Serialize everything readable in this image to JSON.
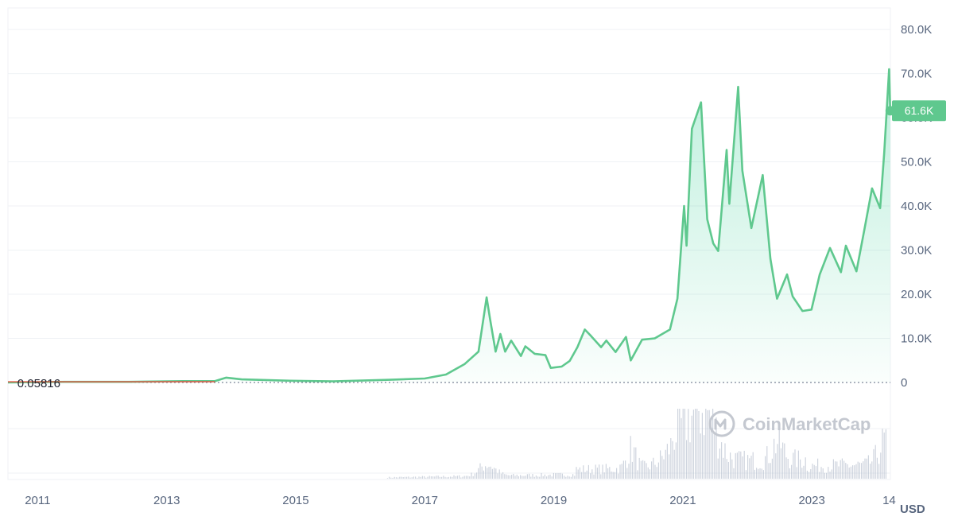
{
  "chart_data": {
    "type": "area",
    "title": "",
    "xlabel": "",
    "ylabel": "",
    "currency_label": "USD",
    "watermark": "CoinMarketCap",
    "baseline_label": "0.05816",
    "last_price_label": "61.6K",
    "y_ticks": [
      "80.0K",
      "70.0K",
      "60.0K",
      "50.0K",
      "40.0K",
      "30.0K",
      "20.0K",
      "10.0K",
      "0"
    ],
    "y_tick_values": [
      80000,
      70000,
      60000,
      50000,
      40000,
      30000,
      20000,
      10000,
      0
    ],
    "x_ticks": [
      "2011",
      "2013",
      "2015",
      "2017",
      "2019",
      "2021",
      "2023",
      "14"
    ],
    "x_tick_dates": [
      "2011-01-01",
      "2013-01-01",
      "2015-01-01",
      "2017-01-01",
      "2019-01-01",
      "2021-01-01",
      "2023-01-01",
      "2024-03-14"
    ],
    "ylim": [
      0,
      82000
    ],
    "xlim": [
      "2010-07-17",
      "2024-03-21"
    ],
    "grid": true,
    "colors": {
      "line": "#5fc88e",
      "fill": "#16c784",
      "baseline_segment": "#e05a45",
      "volume": "#a6b0c3",
      "tick_text": "#58667e",
      "tag_bg": "#5fc88e"
    },
    "series": [
      {
        "values": [
          [
            "2010-07-17",
            0.06
          ],
          [
            "2011-06-01",
            150
          ],
          [
            "2012-06-01",
            150
          ],
          [
            "2013-04-01",
            300
          ],
          [
            "2013-10-01",
            300
          ],
          [
            "2013-12-04",
            1100
          ],
          [
            "2014-03-01",
            700
          ],
          [
            "2014-12-01",
            400
          ],
          [
            "2015-08-01",
            250
          ],
          [
            "2016-06-01",
            600
          ],
          [
            "2017-01-01",
            900
          ],
          [
            "2017-05-01",
            1800
          ],
          [
            "2017-08-15",
            4200
          ],
          [
            "2017-11-01",
            7000
          ],
          [
            "2017-12-17",
            19300
          ],
          [
            "2018-01-05",
            14500
          ],
          [
            "2018-02-06",
            7000
          ],
          [
            "2018-03-05",
            11000
          ],
          [
            "2018-04-01",
            7000
          ],
          [
            "2018-05-05",
            9500
          ],
          [
            "2018-06-29",
            6000
          ],
          [
            "2018-07-24",
            8200
          ],
          [
            "2018-09-15",
            6500
          ],
          [
            "2018-11-15",
            6200
          ],
          [
            "2018-12-15",
            3300
          ],
          [
            "2019-02-15",
            3600
          ],
          [
            "2019-04-02",
            4900
          ],
          [
            "2019-05-15",
            8000
          ],
          [
            "2019-06-26",
            12000
          ],
          [
            "2019-08-01",
            10500
          ],
          [
            "2019-09-26",
            8000
          ],
          [
            "2019-10-26",
            9500
          ],
          [
            "2019-12-17",
            6900
          ],
          [
            "2020-02-14",
            10300
          ],
          [
            "2020-03-12",
            5000
          ],
          [
            "2020-05-15",
            9700
          ],
          [
            "2020-07-26",
            10000
          ],
          [
            "2020-10-20",
            12000
          ],
          [
            "2020-12-01",
            19000
          ],
          [
            "2021-01-08",
            40000
          ],
          [
            "2021-01-22",
            31000
          ],
          [
            "2021-02-21",
            57500
          ],
          [
            "2021-04-14",
            63500
          ],
          [
            "2021-05-19",
            37000
          ],
          [
            "2021-06-22",
            31500
          ],
          [
            "2021-07-20",
            29800
          ],
          [
            "2021-09-06",
            52700
          ],
          [
            "2021-09-21",
            40500
          ],
          [
            "2021-11-10",
            67000
          ],
          [
            "2021-12-04",
            48000
          ],
          [
            "2022-01-24",
            35000
          ],
          [
            "2022-03-29",
            47000
          ],
          [
            "2022-05-12",
            28000
          ],
          [
            "2022-06-18",
            19000
          ],
          [
            "2022-08-14",
            24500
          ],
          [
            "2022-09-15",
            19500
          ],
          [
            "2022-11-09",
            16200
          ],
          [
            "2022-12-30",
            16500
          ],
          [
            "2023-02-15",
            24500
          ],
          [
            "2023-04-14",
            30500
          ],
          [
            "2023-06-15",
            25000
          ],
          [
            "2023-07-13",
            31000
          ],
          [
            "2023-09-11",
            25200
          ],
          [
            "2023-10-25",
            34500
          ],
          [
            "2023-12-08",
            44000
          ],
          [
            "2024-01-23",
            39500
          ],
          [
            "2024-02-15",
            52000
          ],
          [
            "2024-03-14",
            71000
          ],
          [
            "2024-03-20",
            61600
          ]
        ]
      }
    ]
  }
}
